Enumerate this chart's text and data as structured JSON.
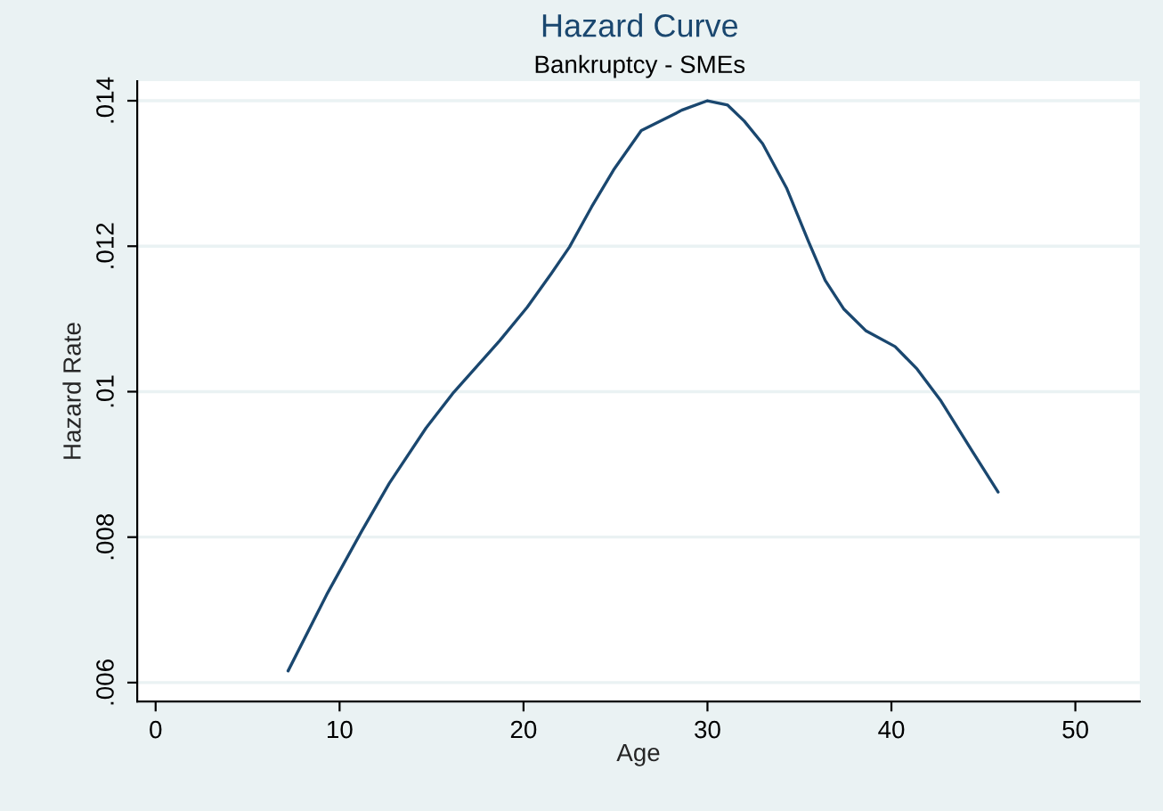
{
  "chart_data": {
    "type": "line",
    "title": "Hazard Curve",
    "subtitle": "Bankruptcy - SMEs",
    "xlabel": "Age",
    "ylabel": "Hazard Rate",
    "series": [
      {
        "color": "#1a476f",
        "x": [
          7.2,
          9.3,
          11.2,
          12.7,
          14.7,
          16.2,
          18.7,
          20.2,
          21.5,
          22.5,
          23.7,
          24.9,
          26.4,
          28.3,
          28.6,
          30.0,
          31.1,
          32.0,
          33.0,
          34.3,
          35.5,
          36.4,
          37.4,
          38.6,
          40.2,
          41.4,
          42.7,
          44.3,
          45.8
        ],
        "values": [
          0.00616,
          0.00721,
          0.00808,
          0.00874,
          0.0095,
          0.00999,
          0.0107,
          0.01116,
          0.01162,
          0.01199,
          0.01254,
          0.01305,
          0.01359,
          0.01383,
          0.01387,
          0.014,
          0.01394,
          0.01372,
          0.01341,
          0.0128,
          0.01206,
          0.01153,
          0.01114,
          0.01084,
          0.01062,
          0.01031,
          0.00987,
          0.00922,
          0.00862
        ]
      }
    ],
    "xlim": [
      -1,
      53.5
    ],
    "xticks": [
      0,
      10,
      20,
      30,
      40,
      50
    ],
    "ylim": [
      0.00574,
      0.01427
    ],
    "yticks": [
      {
        "value": 0.006,
        "label": ".006"
      },
      {
        "value": 0.008,
        "label": ".008"
      },
      {
        "value": 0.01,
        "label": ".01"
      },
      {
        "value": 0.012,
        "label": ".012"
      },
      {
        "value": 0.014,
        "label": ".014"
      }
    ],
    "grid": "y",
    "legend": false,
    "marker": "none",
    "line_style": "solid"
  }
}
